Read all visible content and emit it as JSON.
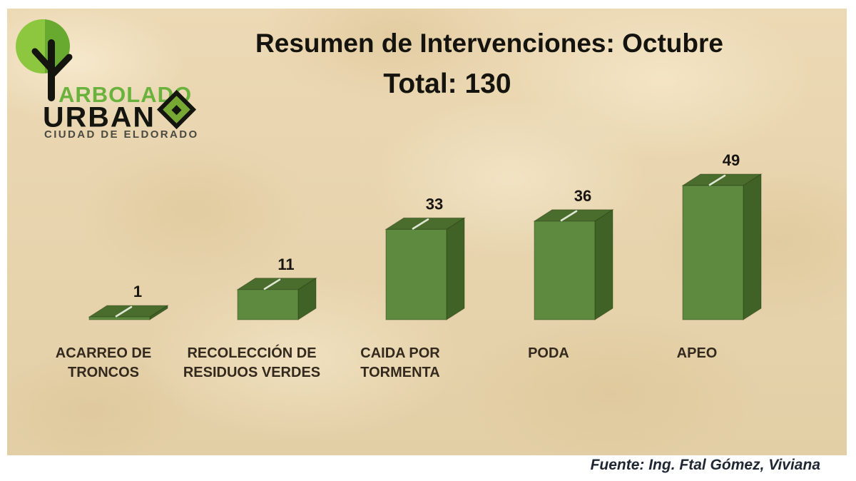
{
  "logo": {
    "brand_line1": "ARBOLADO",
    "brand_line2": "URBAN",
    "tagline": "CIUDAD DE ELDORADO",
    "colors": {
      "circle_light": "#8dc63f",
      "circle_dark": "#68a92f",
      "brand_green": "#6bb23d",
      "brand_black": "#15150f",
      "tagline_gray": "#4b4a40",
      "diamond_fill": "#76a833"
    }
  },
  "title": {
    "line1": "Resumen de Intervenciones: Octubre",
    "line2": "Total: 130",
    "color": "#14130e"
  },
  "footer": {
    "text": "Fuente: Ing. Ftal Gómez, Viviana",
    "color": "#1f2733"
  },
  "panel": {
    "background_base": "#e9d7b2"
  },
  "chart_data": {
    "type": "bar",
    "style": "3d-box",
    "title": "Resumen de Intervenciones: Octubre",
    "subtitle": "Total: 130",
    "categories": [
      "ACARREO DE TRONCOS",
      "RECOLECCIÓN DE RESIDUOS VERDES",
      "CAIDA POR TORMENTA",
      "PODA",
      "APEO"
    ],
    "values": [
      1,
      11,
      33,
      36,
      49
    ],
    "total": 130,
    "data_labels": true,
    "axes_visible": false,
    "grid": false,
    "legend": false,
    "ylim": [
      0,
      49
    ],
    "bar_colors": {
      "front": "#5d8a3e",
      "top": "#4a6d2d",
      "side": "#406226",
      "edge": "rgba(30,50,15,0.4)",
      "highlight": "#dfe6d3"
    },
    "category_label_color": "#33291d",
    "value_label_color": "#181512"
  }
}
